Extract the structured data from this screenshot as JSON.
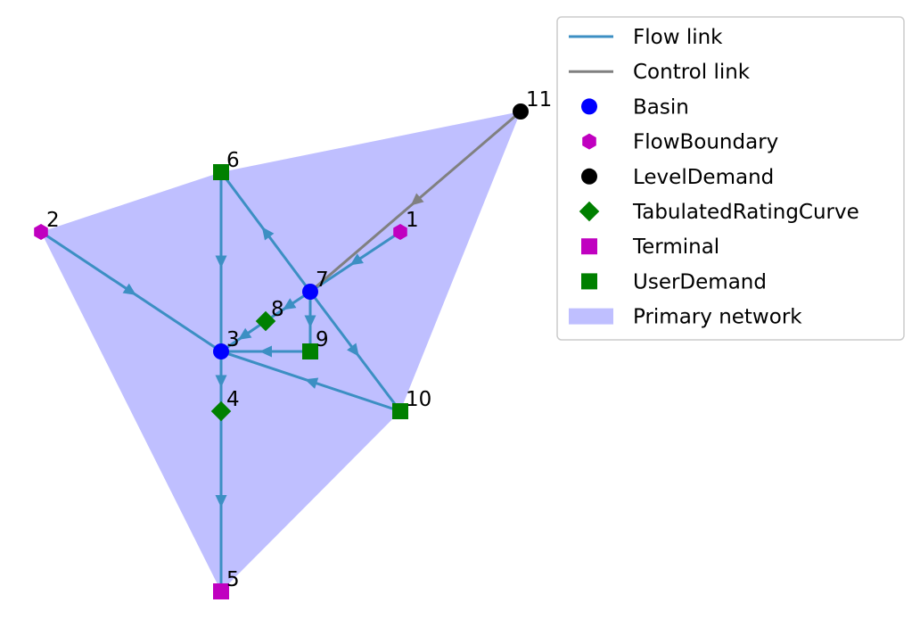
{
  "diagram": {
    "colors": {
      "flow": "#3c8fc3",
      "control": "#808080",
      "region": "#bfbfff",
      "basin": "#0000ff",
      "flow_boundary": "#c000c0",
      "level_demand": "#000000",
      "rating_curve": "#008000",
      "terminal": "#c000c0",
      "user_demand": "#008000"
    },
    "nodes": [
      {
        "id": "1",
        "type": "FlowBoundary"
      },
      {
        "id": "2",
        "type": "FlowBoundary"
      },
      {
        "id": "3",
        "type": "Basin"
      },
      {
        "id": "4",
        "type": "TabulatedRatingCurve"
      },
      {
        "id": "5",
        "type": "Terminal"
      },
      {
        "id": "6",
        "type": "UserDemand"
      },
      {
        "id": "7",
        "type": "Basin"
      },
      {
        "id": "8",
        "type": "TabulatedRatingCurve"
      },
      {
        "id": "9",
        "type": "UserDemand"
      },
      {
        "id": "10",
        "type": "UserDemand"
      },
      {
        "id": "11",
        "type": "LevelDemand"
      }
    ],
    "links": [
      {
        "from": "1",
        "to": "7",
        "kind": "flow"
      },
      {
        "from": "2",
        "to": "3",
        "kind": "flow"
      },
      {
        "from": "3",
        "to": "4",
        "kind": "flow"
      },
      {
        "from": "4",
        "to": "5",
        "kind": "flow"
      },
      {
        "from": "6",
        "to": "3",
        "kind": "flow"
      },
      {
        "from": "7",
        "to": "6",
        "kind": "flow"
      },
      {
        "from": "7",
        "to": "8",
        "kind": "flow"
      },
      {
        "from": "8",
        "to": "3",
        "kind": "flow"
      },
      {
        "from": "7",
        "to": "9",
        "kind": "flow"
      },
      {
        "from": "9",
        "to": "3",
        "kind": "flow"
      },
      {
        "from": "7",
        "to": "10",
        "kind": "flow"
      },
      {
        "from": "10",
        "to": "3",
        "kind": "flow"
      },
      {
        "from": "11",
        "to": "7",
        "kind": "control"
      }
    ],
    "region_nodes": [
      "2",
      "6",
      "11",
      "10",
      "5"
    ],
    "legend": [
      {
        "label": "Flow link",
        "symbol": "line",
        "color_key": "flow"
      },
      {
        "label": "Control link",
        "symbol": "line",
        "color_key": "control"
      },
      {
        "label": "Basin",
        "symbol": "circle",
        "color_key": "basin"
      },
      {
        "label": "FlowBoundary",
        "symbol": "hexagon",
        "color_key": "flow_boundary"
      },
      {
        "label": "LevelDemand",
        "symbol": "circle",
        "color_key": "level_demand"
      },
      {
        "label": "TabulatedRatingCurve",
        "symbol": "diamond",
        "color_key": "rating_curve"
      },
      {
        "label": "Terminal",
        "symbol": "square",
        "color_key": "terminal"
      },
      {
        "label": "UserDemand",
        "symbol": "square",
        "color_key": "user_demand"
      },
      {
        "label": "Primary network",
        "symbol": "patch",
        "color_key": "region"
      }
    ]
  }
}
